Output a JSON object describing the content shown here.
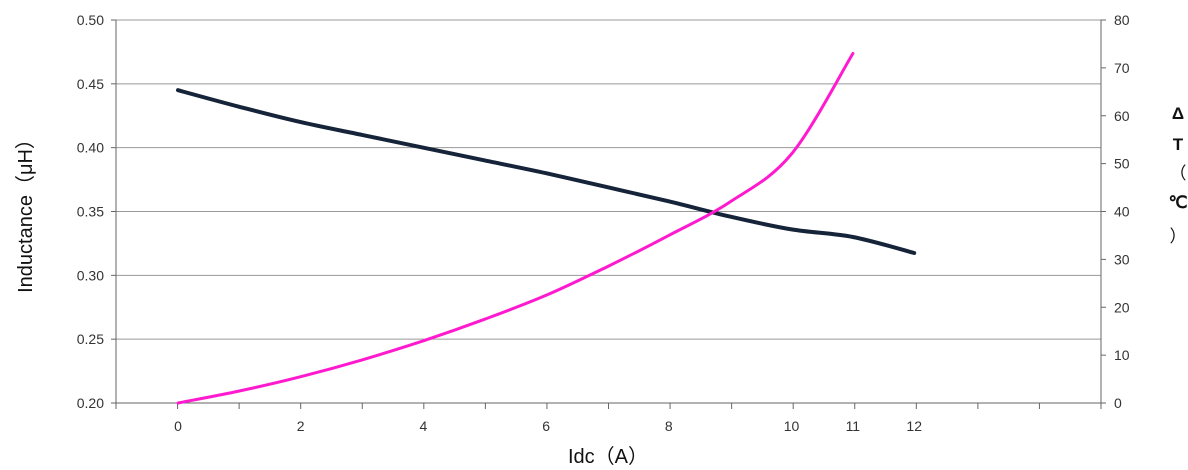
{
  "chart_data": {
    "type": "line",
    "xlabel": "Idc（A）",
    "ylabel": "Inductance（μH）",
    "y2label_lines": [
      "Δ",
      "T",
      "（",
      "℃",
      "）"
    ],
    "x_ticks": [
      0,
      2,
      4,
      6,
      8,
      10,
      11,
      12
    ],
    "y_ticks": [
      "0.20",
      "0.25",
      "0.30",
      "0.35",
      "0.40",
      "0.45",
      "0.50"
    ],
    "y2_ticks": [
      "0",
      "10",
      "20",
      "30",
      "40",
      "50",
      "60",
      "70",
      "80"
    ],
    "ylim": [
      0.2,
      0.5
    ],
    "y2lim": [
      0,
      80
    ],
    "grid": true,
    "colors": {
      "inductance": "#16243a",
      "temperature": "#ff1ad0",
      "grid": "#999999",
      "axis": "#666666"
    },
    "series": [
      {
        "axis": "left",
        "x": [
          0,
          1,
          2,
          3,
          4,
          5,
          6,
          7,
          8,
          9,
          10,
          11,
          12
        ],
        "y": [
          0.445,
          0.432,
          0.42,
          0.41,
          0.4,
          0.39,
          0.38,
          0.369,
          0.358,
          0.346,
          0.336,
          0.33,
          0.3175
        ]
      },
      {
        "axis": "right",
        "x": [
          0,
          1,
          2,
          3,
          4,
          5,
          6,
          7,
          8,
          9,
          10,
          11
        ],
        "y": [
          0,
          2.5,
          5.5,
          9,
          13,
          17.5,
          22.5,
          28.5,
          35,
          42,
          52,
          73
        ]
      }
    ]
  }
}
